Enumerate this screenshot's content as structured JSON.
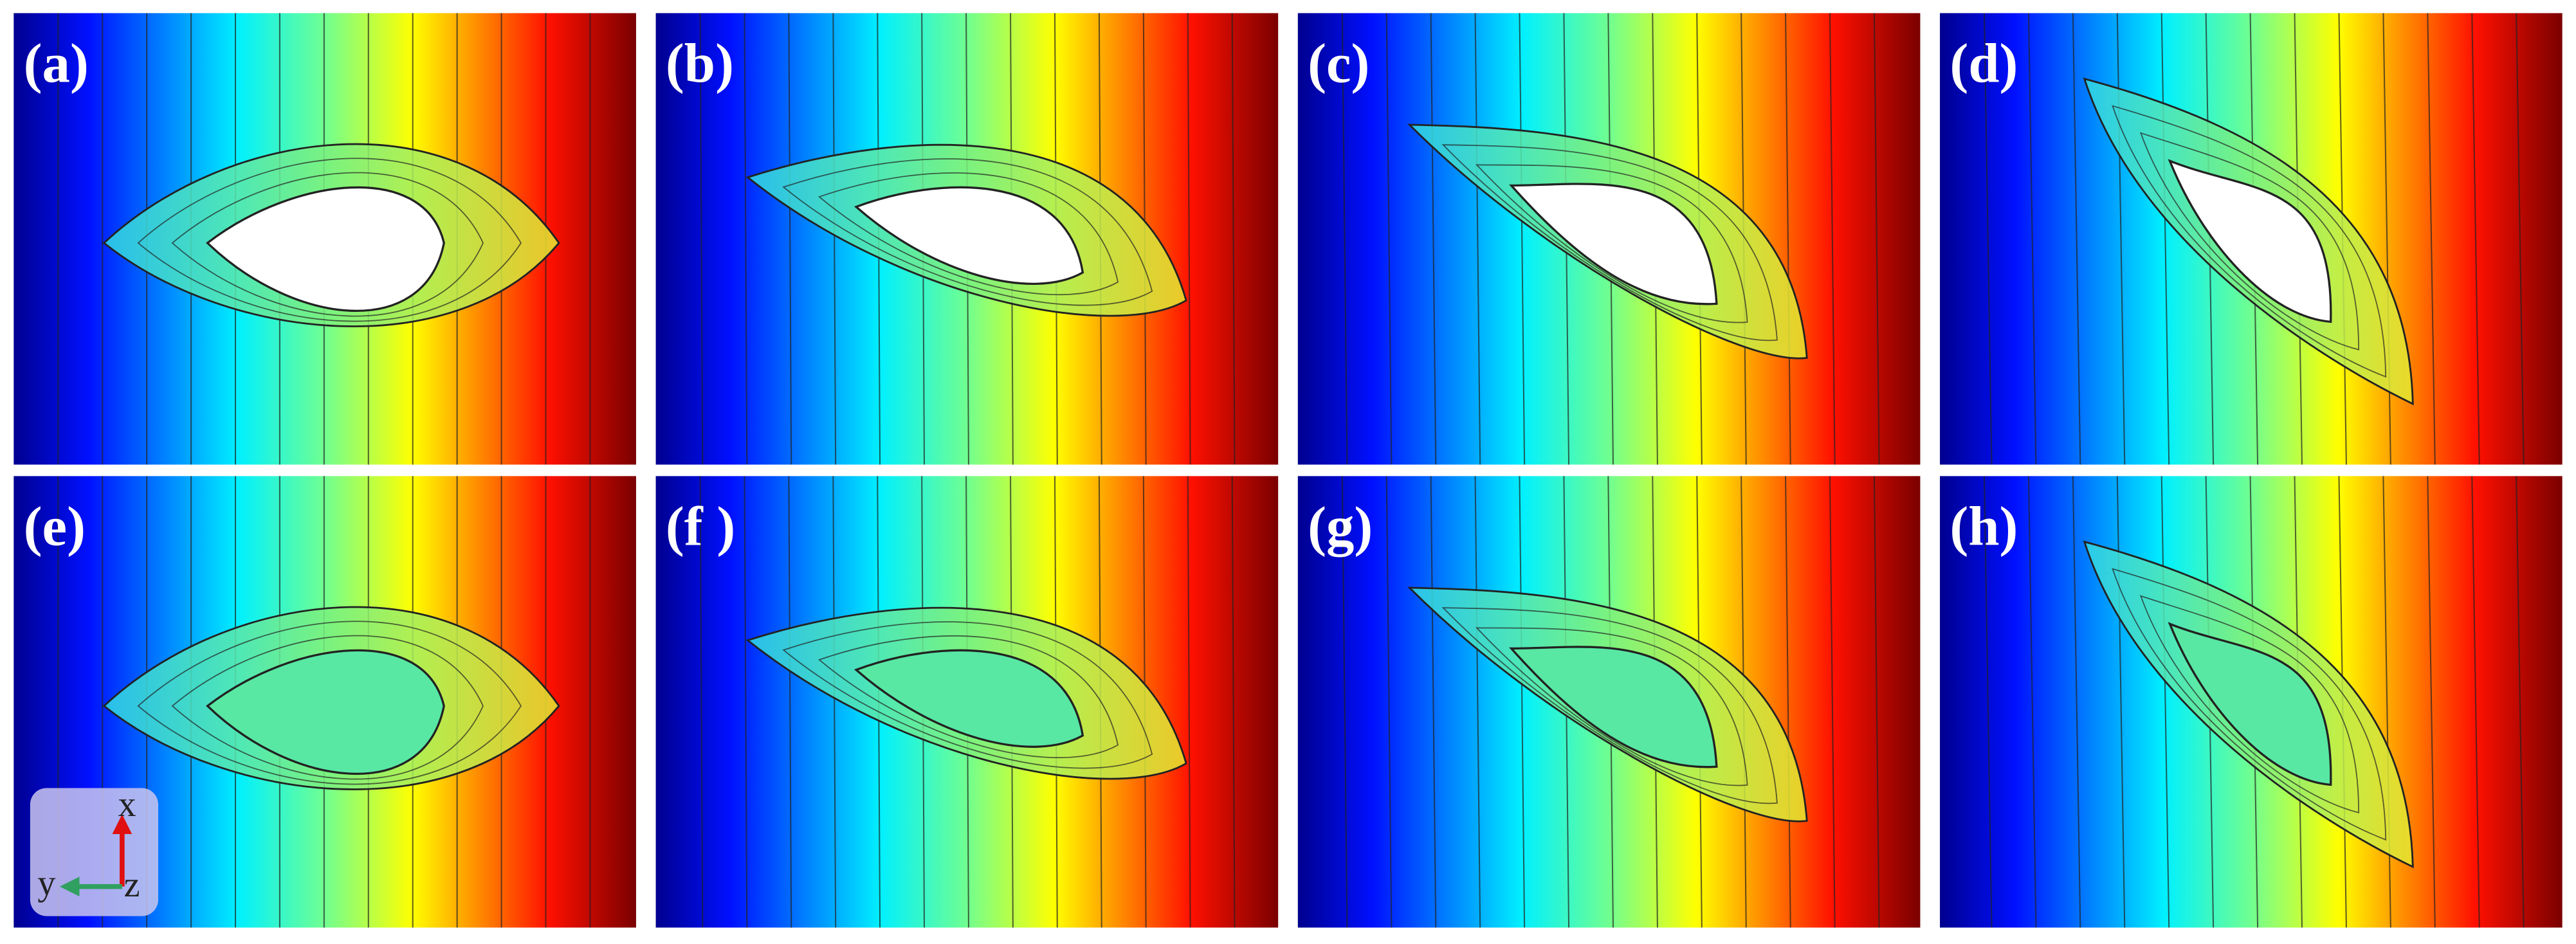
{
  "panels": [
    {
      "label": "(a)"
    },
    {
      "label": "(b)"
    },
    {
      "label": "(c)"
    },
    {
      "label": "(d)"
    },
    {
      "label": "(e)"
    },
    {
      "label": "(f )"
    },
    {
      "label": "(g)"
    },
    {
      "label": "(h)"
    }
  ],
  "axes": {
    "x": "x",
    "y": "y",
    "z": "z"
  }
}
